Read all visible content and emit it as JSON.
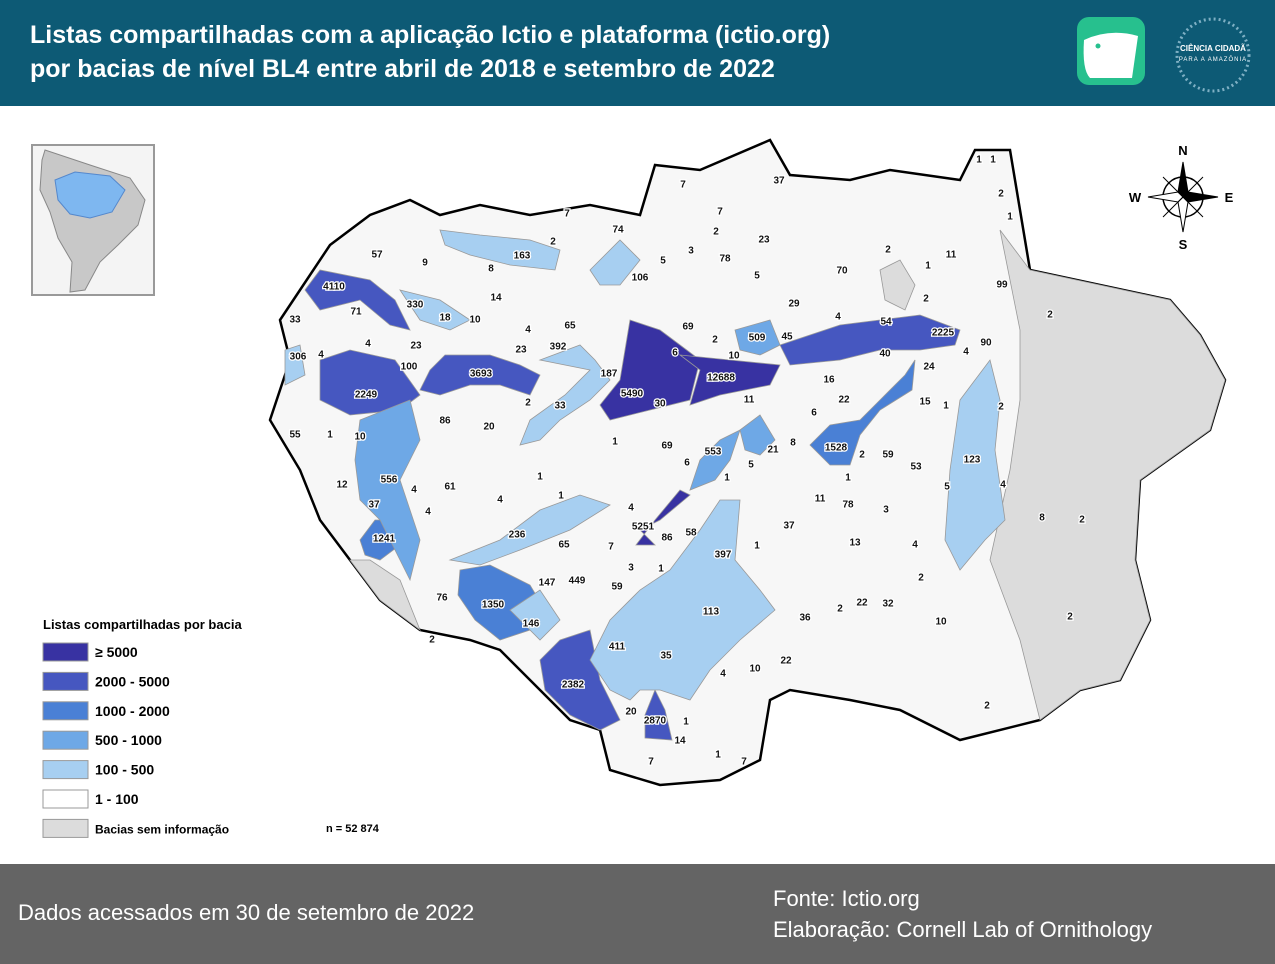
{
  "header": {
    "title_lines": [
      "Listas compartilhadas com a aplicação Ictio e plataforma (ictio.org)",
      "por bacias de nível BL4 entre abril de 2018 e setembro de 2022"
    ],
    "logo_text": [
      "CIÊNCIA CIDADÃ",
      "PARA A AMAZÔNIA"
    ]
  },
  "compass": {
    "n": "N",
    "s": "S",
    "e": "E",
    "w": "W"
  },
  "map": {
    "basin_labels": [
      7,
      37,
      7,
      7,
      74,
      2,
      23,
      2,
      163,
      5,
      3,
      78,
      57,
      9,
      8,
      106,
      5,
      70,
      2,
      1,
      11,
      99,
      2,
      1,
      1,
      1,
      4110,
      14,
      330,
      71,
      18,
      10,
      4,
      65,
      69,
      29,
      4,
      54,
      2225,
      2,
      2,
      33,
      4,
      23,
      23,
      392,
      6,
      2,
      509,
      45,
      10,
      4,
      90,
      306,
      4,
      100,
      3693,
      187,
      12688,
      40,
      24,
      2249,
      5490,
      30,
      2,
      33,
      16,
      22,
      11,
      15,
      1,
      86,
      20,
      6,
      2,
      55,
      1,
      10,
      1,
      69,
      553,
      21,
      8,
      1528,
      2,
      59,
      53,
      123,
      6,
      5,
      12,
      556,
      61,
      1,
      1,
      1,
      4,
      5,
      4,
      37,
      4,
      4,
      1,
      11,
      78,
      3,
      4,
      5251,
      58,
      37,
      8,
      2,
      1241,
      236,
      86,
      65,
      7,
      1,
      13,
      4,
      397,
      3,
      1,
      2,
      147,
      449,
      59,
      1350,
      22,
      32,
      2,
      76,
      113,
      36,
      10,
      2,
      146,
      2,
      411,
      35,
      22,
      10,
      4,
      2382,
      2,
      20,
      2870,
      1,
      14,
      7,
      1,
      7
    ]
  },
  "legend": {
    "title": "Listas compartilhadas por bacia",
    "items": [
      {
        "label": "≥ 5000",
        "color": "#3832a2"
      },
      {
        "label": "2000 - 5000",
        "color": "#4657c0"
      },
      {
        "label": "1000 - 2000",
        "color": "#4a80d5"
      },
      {
        "label": "500 - 1000",
        "color": "#6ea8e6"
      },
      {
        "label": "100 - 500",
        "color": "#a7cff1"
      },
      {
        "label": "1 - 100",
        "color": "#ffffff"
      },
      {
        "label": "Bacias sem informação",
        "color": "#dcdcdc"
      }
    ],
    "n_label": "n = 52 874"
  },
  "footer": {
    "accessed": "Dados acessados em 30 de setembro de 2022",
    "source": "Fonte: Ictio.org",
    "credit": "Elaboração: Cornell Lab of Ornithology"
  }
}
